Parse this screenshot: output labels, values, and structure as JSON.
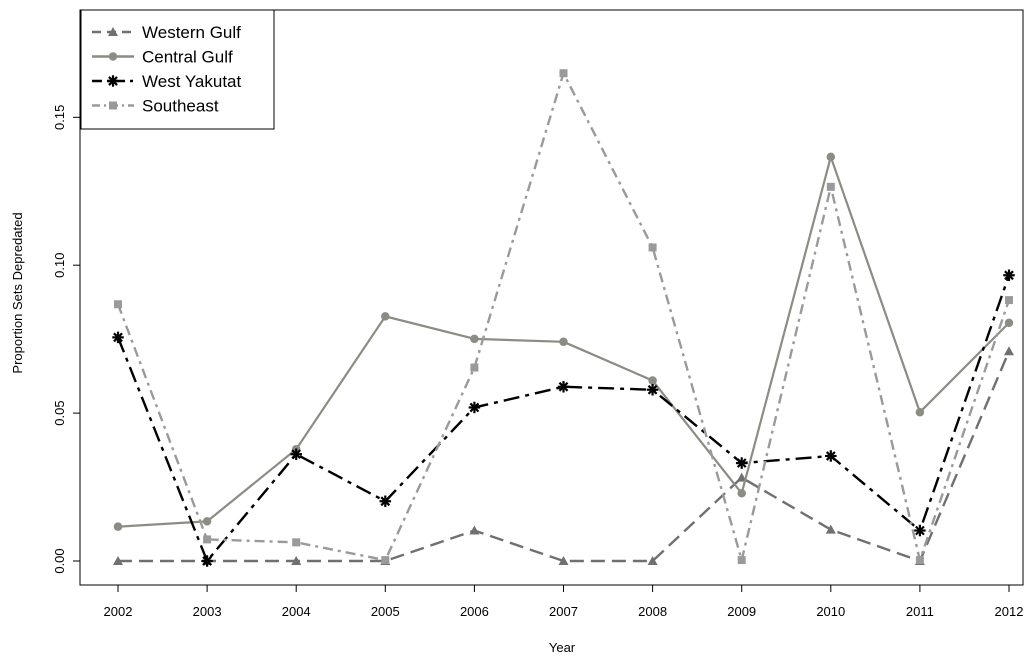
{
  "chart_data": {
    "type": "line",
    "title": "",
    "xlabel": "Year",
    "ylabel": "Proportion Sets Depredated",
    "x": [
      "2002",
      "2003",
      "2004",
      "2005",
      "2006",
      "2007",
      "2008",
      "2009",
      "2010",
      "2011",
      "2012"
    ],
    "ylim": [
      -0.009,
      0.187
    ],
    "yticks": [
      "0.00",
      "0.05",
      "0.10",
      "0.15"
    ],
    "legend_position": "top-left",
    "grid": false,
    "series": [
      {
        "name": "Western Gulf",
        "values": [
          0.0,
          0.0,
          0.0,
          0.0,
          0.0103,
          0.0,
          0.0,
          0.0282,
          0.0106,
          0.0,
          0.0709
        ],
        "color": "#707070",
        "dash": "long-dash",
        "marker": "triangle"
      },
      {
        "name": "Central Gulf",
        "values": [
          0.0116,
          0.0134,
          0.0378,
          0.0827,
          0.0751,
          0.0741,
          0.061,
          0.0229,
          0.1366,
          0.0503,
          0.0805
        ],
        "color": "#8c8c84",
        "dash": "solid",
        "marker": "circle"
      },
      {
        "name": "West Yakutat",
        "values": [
          0.0756,
          0.0,
          0.0361,
          0.0202,
          0.0519,
          0.0589,
          0.0579,
          0.0331,
          0.0355,
          0.0103,
          0.0966
        ],
        "color": "#000000",
        "dash": "dash-dot",
        "marker": "asterisk"
      },
      {
        "name": "Southeast",
        "values": [
          0.0868,
          0.0073,
          0.0063,
          0.0003,
          0.0654,
          0.1649,
          0.106,
          0.0003,
          0.1265,
          0.0003,
          0.0882
        ],
        "color": "#9a9a9a",
        "dash": "dot-dash",
        "marker": "square"
      }
    ]
  }
}
